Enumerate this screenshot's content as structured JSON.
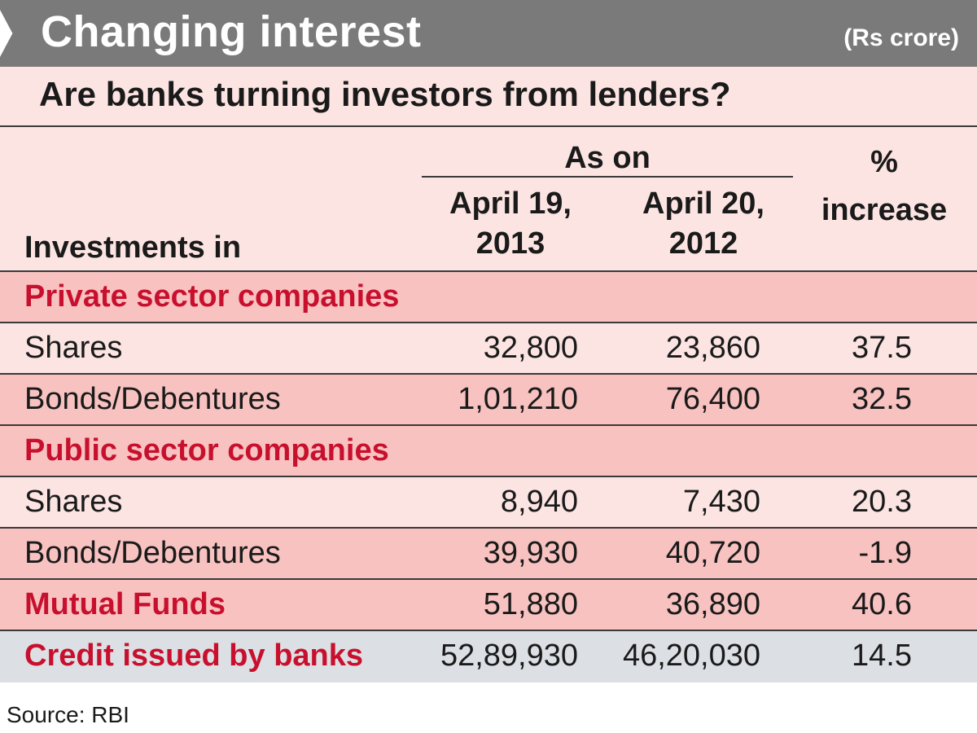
{
  "chart_data": {
    "type": "table",
    "title": "Changing interest",
    "unit": "(Rs crore)",
    "subtitle": "Are banks turning investors from lenders?",
    "columns": {
      "label": "Investments in",
      "group": "As on",
      "col1": [
        "April 19,",
        "2013"
      ],
      "col2": [
        "April 20,",
        "2012"
      ],
      "col3": [
        "%",
        "increase"
      ]
    },
    "rows": [
      {
        "kind": "section",
        "label": "Private sector companies",
        "v1": "",
        "v2": "",
        "v3": ""
      },
      {
        "kind": "data",
        "label": "Shares",
        "v1": "32,800",
        "v2": "23,860",
        "v3": "37.5"
      },
      {
        "kind": "data",
        "label": "Bonds/Debentures",
        "v1": "1,01,210",
        "v2": "76,400",
        "v3": "32.5"
      },
      {
        "kind": "section",
        "label": "Public sector companies",
        "v1": "",
        "v2": "",
        "v3": ""
      },
      {
        "kind": "data",
        "label": "Shares",
        "v1": "8,940",
        "v2": "7,430",
        "v3": "20.3"
      },
      {
        "kind": "data",
        "label": "Bonds/Debentures",
        "v1": "39,930",
        "v2": "40,720",
        "v3": "-1.9"
      },
      {
        "kind": "total",
        "label": "Mutual Funds",
        "v1": "51,880",
        "v2": "36,890",
        "v3": "40.6"
      },
      {
        "kind": "credit",
        "label": "Credit issued by banks",
        "v1": "52,89,930",
        "v2": "46,20,030",
        "v3": "14.5"
      }
    ],
    "source": "Source: RBI"
  },
  "colors": {
    "banner": "#7a7a7a",
    "light_pink": "#fbe4e2",
    "mid_pink": "#f7c2c0",
    "grey_row": "#dcdfe3",
    "accent_red": "#c8102e"
  }
}
